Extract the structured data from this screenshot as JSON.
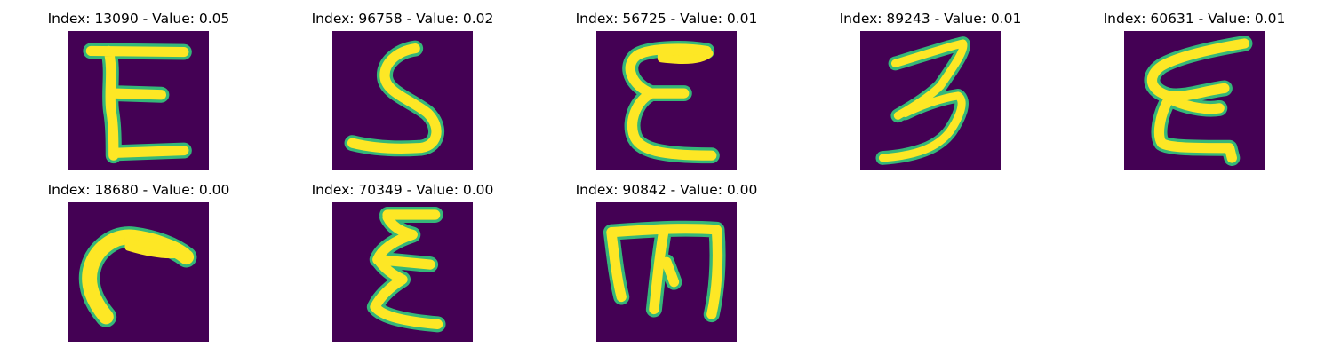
{
  "colors": {
    "background": "#440154",
    "stroke_core": "#fde725",
    "stroke_edge": "#35b779",
    "stroke_mid": "#21918c"
  },
  "panels": [
    {
      "title": "Index: 13090 - Value: 0.05",
      "glyph": "E"
    },
    {
      "title": "Index: 96758 - Value: 0.02",
      "glyph": "S"
    },
    {
      "title": "Index: 56725 - Value: 0.01",
      "glyph": "E"
    },
    {
      "title": "Index: 89243 - Value: 0.01",
      "glyph": "3"
    },
    {
      "title": "Index: 60631 - Value: 0.01",
      "glyph": "E"
    },
    {
      "title": "Index: 18680 - Value: 0.00",
      "glyph": "C"
    },
    {
      "title": "Index: 70349 - Value: 0.00",
      "glyph": "E"
    },
    {
      "title": "Index: 90842 - Value: 0.00",
      "glyph": "M"
    }
  ]
}
